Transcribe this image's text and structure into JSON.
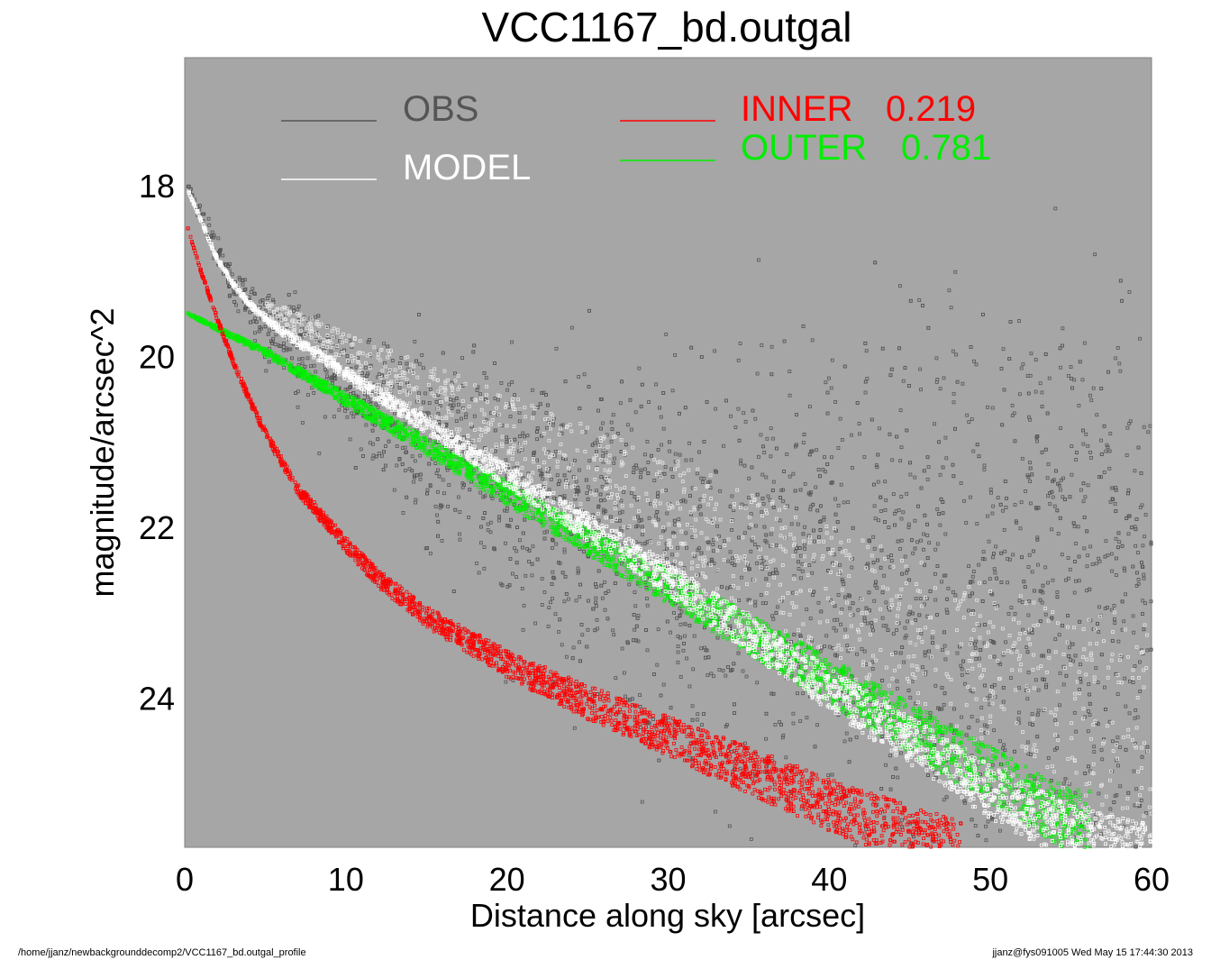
{
  "chart_data": {
    "type": "scatter",
    "title": "VCC1167_bd.outgal",
    "xlabel": "Distance along sky [arcsec]",
    "ylabel": "magnitude/arcsec^2",
    "xlim": [
      0,
      60
    ],
    "ylim": [
      25.75,
      16.5
    ],
    "y_inverted": true,
    "x_ticks": [
      "0",
      "10",
      "20",
      "30",
      "40",
      "50",
      "60"
    ],
    "x_tick_values": [
      0,
      10,
      20,
      30,
      40,
      50,
      60
    ],
    "y_ticks": [
      "18",
      "20",
      "22",
      "24"
    ],
    "y_tick_values": [
      18,
      20,
      22,
      24
    ],
    "background_color": "#a6a6a6",
    "grid": false,
    "legend": [
      {
        "label": "OBS",
        "value": "",
        "color": "#555555"
      },
      {
        "label": "MODEL",
        "value": "",
        "color": "#ffffff"
      },
      {
        "label": "INNER",
        "value": "0.219",
        "color": "#ff0000"
      },
      {
        "label": "OUTER",
        "value": "0.781",
        "color": "#00ee00"
      }
    ],
    "series": [
      {
        "name": "OBS",
        "color": "#555555",
        "x": [
          0.2,
          1,
          2,
          3,
          4,
          5,
          6,
          8,
          10,
          12,
          15,
          18,
          20,
          25,
          30,
          35,
          40,
          45,
          50,
          55,
          60
        ],
        "y": [
          18.0,
          18.35,
          18.75,
          19.1,
          19.35,
          19.55,
          19.7,
          19.95,
          20.2,
          20.45,
          20.8,
          21.1,
          21.3,
          21.7,
          21.95,
          22.1,
          22.2,
          22.25,
          22.3,
          22.35,
          22.4
        ]
      },
      {
        "name": "MODEL",
        "color": "#ffffff",
        "x": [
          0.2,
          1,
          2,
          3,
          4,
          5,
          6,
          8,
          10,
          12,
          15,
          20,
          25,
          30,
          35,
          40,
          45,
          50,
          55,
          60
        ],
        "y": [
          18.05,
          18.4,
          18.85,
          19.15,
          19.38,
          19.55,
          19.7,
          19.95,
          20.2,
          20.45,
          20.8,
          21.4,
          22.0,
          22.6,
          23.25,
          23.9,
          24.5,
          25.1,
          25.6,
          25.85
        ]
      },
      {
        "name": "INNER",
        "color": "#ff0000",
        "x": [
          0.2,
          1,
          2,
          3,
          4,
          5,
          7,
          10,
          12,
          15,
          20,
          25,
          30,
          35,
          40,
          45,
          50
        ],
        "y": [
          18.5,
          19.0,
          19.55,
          20.05,
          20.5,
          20.9,
          21.55,
          22.2,
          22.6,
          23.05,
          23.6,
          24.05,
          24.45,
          24.85,
          25.25,
          25.6,
          25.95
        ]
      },
      {
        "name": "OUTER",
        "color": "#00ee00",
        "x": [
          0.2,
          5,
          10,
          15,
          20,
          25,
          30,
          35,
          40,
          45,
          50,
          55
        ],
        "y": [
          19.5,
          19.95,
          20.5,
          21.05,
          21.6,
          22.15,
          22.7,
          23.25,
          23.8,
          24.35,
          24.9,
          25.45
        ]
      }
    ]
  },
  "footer": {
    "left": "/home/jjanz/newbackgrounddecomp2/VCC1167_bd.outgal_profile",
    "right": "jjanz@fys091005  Wed May 15 17:44:30 2013"
  }
}
